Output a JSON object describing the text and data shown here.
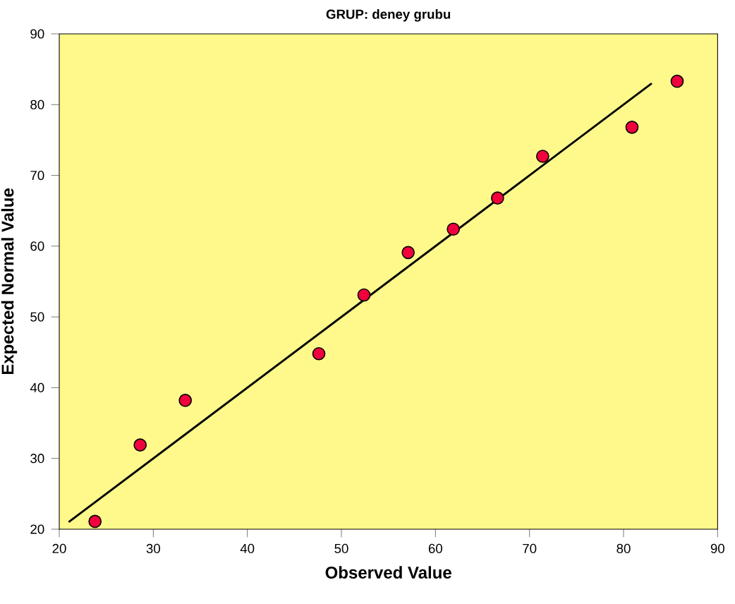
{
  "chart_data": {
    "type": "scatter",
    "title": "GRUP: deney grubu",
    "xlabel": "Observed Value",
    "ylabel": "Expected Normal Value",
    "series": [
      {
        "color": "#f0003c",
        "marker": "circle",
        "x": [
          23.8,
          28.6,
          33.4,
          47.6,
          52.4,
          57.1,
          61.9,
          66.6,
          71.4,
          80.9,
          85.7
        ],
        "values": [
          21.1,
          31.9,
          38.2,
          44.8,
          53.1,
          59.1,
          62.4,
          66.8,
          72.7,
          76.8,
          83.3
        ]
      },
      {
        "type": "line",
        "color": "#000000",
        "marker": "none",
        "line_style": "solid",
        "x": [
          21,
          83
        ],
        "values": [
          21,
          83
        ]
      }
    ],
    "xlim": [
      20,
      90
    ],
    "ylim": [
      20,
      90
    ],
    "xticks": [
      20,
      30,
      40,
      50,
      60,
      70,
      80,
      90
    ],
    "yticks": [
      20,
      30,
      40,
      50,
      60,
      70,
      80,
      90
    ],
    "grid": false
  }
}
